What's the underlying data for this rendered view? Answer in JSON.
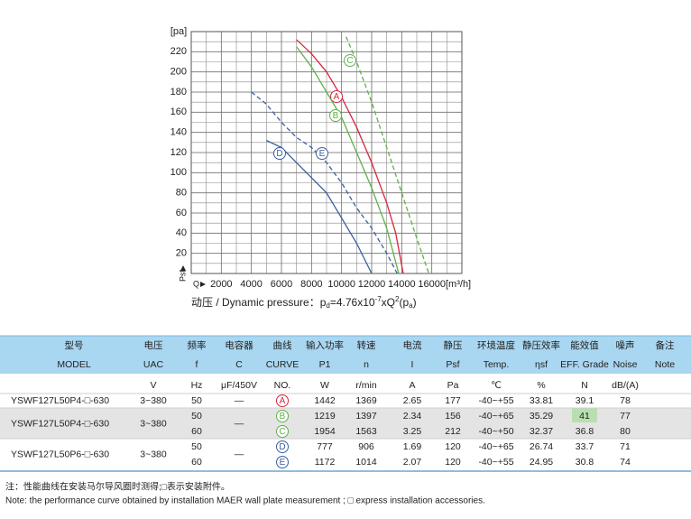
{
  "chart_data": {
    "type": "line",
    "y_axis_label": "[pa]",
    "x_axis_label": "[m³/h]",
    "x_symbol": "Q",
    "y_symbol": "Psf",
    "xlim": [
      0,
      18000
    ],
    "ylim": [
      0,
      240
    ],
    "xticks": [
      2000,
      4000,
      6000,
      8000,
      10000,
      12000,
      14000,
      16000
    ],
    "yticks": [
      20,
      40,
      60,
      80,
      100,
      120,
      140,
      160,
      180,
      200,
      220
    ],
    "grid": true,
    "series": [
      {
        "name": "A",
        "color": "#d7263d",
        "dash": false,
        "x": [
          7000,
          8000,
          9000,
          10000,
          11000,
          12000,
          13000,
          13600,
          14100
        ],
        "values": [
          232,
          218,
          200,
          175,
          145,
          110,
          70,
          40,
          0
        ]
      },
      {
        "name": "B",
        "color": "#5fb04a",
        "dash": false,
        "x": [
          7000,
          8000,
          9000,
          10000,
          11000,
          12000,
          13000,
          13800
        ],
        "values": [
          225,
          205,
          180,
          155,
          120,
          85,
          45,
          0
        ]
      },
      {
        "name": "C",
        "color": "#5fb04a",
        "dash": true,
        "x": [
          10300,
          11000,
          12000,
          13000,
          14000,
          15000,
          15800
        ],
        "values": [
          235,
          210,
          170,
          125,
          80,
          35,
          0
        ]
      },
      {
        "name": "D",
        "color": "#3a5f9e",
        "dash": false,
        "x": [
          5000,
          6000,
          7000,
          8000,
          9000,
          10000,
          11000,
          12000
        ],
        "values": [
          132,
          125,
          110,
          95,
          80,
          55,
          30,
          0
        ]
      },
      {
        "name": "E",
        "color": "#3a5f9e",
        "dash": true,
        "x": [
          4000,
          5000,
          6000,
          7000,
          8000,
          9000,
          10000,
          11000,
          12000,
          13000,
          13700
        ],
        "values": [
          180,
          168,
          150,
          135,
          125,
          110,
          90,
          65,
          45,
          20,
          0
        ]
      }
    ],
    "formula": [
      "动压 / Dynamic pressure：p",
      "d",
      "=4.76x10",
      "-7",
      "xQ",
      "2",
      "(p",
      "a",
      ")"
    ]
  },
  "table": {
    "header_cn": [
      "型号",
      "电压",
      "频率",
      "电容器",
      "曲线",
      "输入功率",
      "转速",
      "电流",
      "静压",
      "环境温度",
      "静压效率",
      "能效值",
      "噪声",
      "备注"
    ],
    "header_en": [
      "MODEL",
      "UAC",
      "f",
      "C",
      "CURVE",
      "P1",
      "n",
      "I",
      "Psf",
      "Temp.",
      "ηsf",
      "EFF. Grade",
      "Noise",
      "Note"
    ],
    "units": [
      "V",
      "Hz",
      "μF/450V",
      "NO.",
      "W",
      "r/min",
      "A",
      "Pa",
      "℃",
      "%",
      "N",
      "dB/(A)"
    ],
    "groups": [
      {
        "model": "YSWF127L50P4-□-630",
        "voltage": "3~380",
        "capacitor": "—",
        "rows": [
          [
            50,
            "A",
            1442,
            1369,
            2.65,
            177,
            "-40~+55",
            33.81,
            39.1,
            78
          ]
        ]
      },
      {
        "model": "YSWF127L50P4-□-630",
        "voltage": "3~380",
        "capacitor": "—",
        "rows": [
          [
            50,
            "B",
            1219,
            1397,
            2.34,
            156,
            "-40~+65",
            35.29,
            41,
            77
          ],
          [
            60,
            "C",
            1954,
            1563,
            3.25,
            212,
            "-40~+50",
            32.37,
            36.8,
            80
          ]
        ]
      },
      {
        "model": "YSWF127L50P6-□-630",
        "voltage": "3~380",
        "capacitor": "—",
        "rows": [
          [
            50,
            "D",
            777,
            906,
            1.69,
            120,
            "-40~+65",
            26.74,
            33.7,
            71
          ],
          [
            60,
            "E",
            1172,
            1014,
            2.07,
            120,
            "-40~+55",
            24.95,
            30.8,
            74
          ]
        ]
      }
    ]
  },
  "notes": [
    "注：性能曲线在安装马尔导风圈时测得;□表示安装附件。",
    "Note: the performance curve obtained by installation MAER wall plate measurement ; □ express installation accessories."
  ]
}
